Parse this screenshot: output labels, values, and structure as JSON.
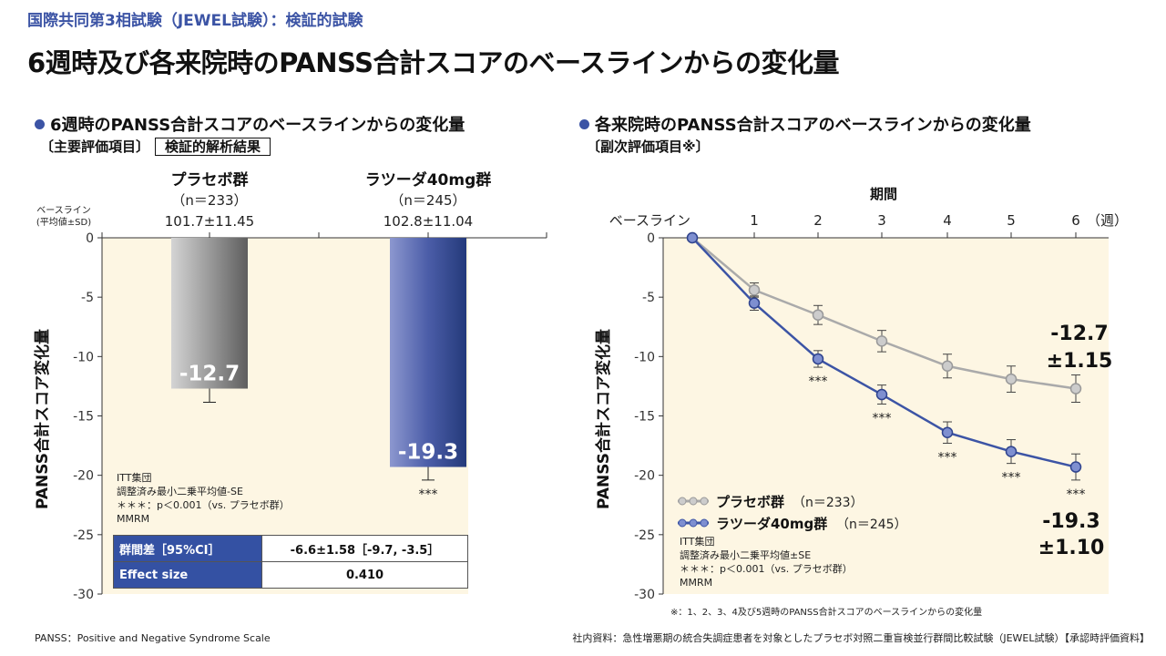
{
  "header": {
    "subtitle": "国際共同第3相試験（JEWEL試験）：検証的試験",
    "title": "6週時及び各来院時のPANSS合計スコアのベースラインからの変化量"
  },
  "left_section": {
    "title": "6週時のPANSS合計スコアのベースラインからの変化量",
    "subtitle": "〔主要評価項目〕",
    "badge": "検証的解析結果",
    "baseline_label_line1": "ベースライン",
    "baseline_label_line2": "(平均値±SD)",
    "groups": [
      {
        "name": "プラセボ群",
        "n": "（n＝233）",
        "baseline": "101.7±11.45"
      },
      {
        "name": "ラツーダ40mg群",
        "n": "（n＝245）",
        "baseline": "102.8±11.04"
      }
    ],
    "notes": [
      "ITT集団",
      "調整済み最小二乗平均値-SE",
      "＊＊＊：p＜0.001（vs. プラセボ群）",
      "MMRM"
    ],
    "table": [
      {
        "label": "群間差［95%CI］",
        "value": "-6.6±1.58［-9.7, -3.5］"
      },
      {
        "label": "Effect size",
        "value": "0.410"
      }
    ]
  },
  "right_section": {
    "title": "各来院時のPANSS合計スコアのベースラインからの変化量",
    "subtitle": "〔副次評価項目※〕",
    "notes": [
      "ITT集団",
      "調整済み最小二乗平均値±SE",
      "＊＊＊：p＜0.001（vs. プラセボ群）",
      "MMRM"
    ],
    "footnote": "※：1、2、3、4及び5週時のPANSS合計スコアのベースラインからの変化量",
    "placebo_end_label": [
      "-12.7",
      "±1.15"
    ],
    "latuda_end_label": [
      "-19.3",
      "±1.10"
    ]
  },
  "footer": {
    "left": "PANSS：Positive and Negative Syndrome Scale",
    "right": "社内資料：急性増悪期の統合失調症患者を対象としたプラセボ対照二重盲検並行群間比較試験（JEWEL試験）【承認時評価資料】"
  },
  "colors": {
    "accent": "#3c54a5",
    "plot_bg": "#fdf6e3",
    "placebo": "#aaaaaa",
    "latuda": "#3c54a5"
  },
  "chart_data": [
    {
      "type": "bar",
      "title": "6週時のPANSS合計スコアのベースラインからの変化量",
      "ylabel": "PANSS合計スコア変化量",
      "ylim": [
        -30,
        0
      ],
      "yticks": [
        0,
        -5,
        -10,
        -15,
        -20,
        -25,
        -30
      ],
      "categories": [
        "プラセボ群",
        "ラツーダ40mg群"
      ],
      "values": [
        -12.7,
        -19.3
      ],
      "value_labels": [
        "-12.7",
        "-19.3"
      ],
      "errors": [
        1.15,
        1.1
      ],
      "significance": [
        "",
        "***"
      ]
    },
    {
      "type": "line",
      "title": "各来院時のPANSS合計スコアのベースラインからの変化量",
      "xlabel": "期間",
      "ylabel": "PANSS合計スコア変化量",
      "x_tick_labels": [
        "ベースライン",
        "1",
        "2",
        "3",
        "4",
        "5",
        "6"
      ],
      "x_unit": "（週）",
      "x": [
        0,
        1,
        2,
        3,
        4,
        5,
        6
      ],
      "ylim": [
        -30,
        0
      ],
      "yticks": [
        0,
        -5,
        -10,
        -15,
        -20,
        -25,
        -30
      ],
      "series": [
        {
          "name": "プラセボ群",
          "n": "（n＝233）",
          "values": [
            0,
            -4.4,
            -6.5,
            -8.7,
            -10.8,
            -11.9,
            -12.7
          ],
          "errors": [
            0,
            0.6,
            0.8,
            0.9,
            1.0,
            1.1,
            1.15
          ]
        },
        {
          "name": "ラツーダ40mg群",
          "n": "（n＝245）",
          "values": [
            0,
            -5.5,
            -10.2,
            -13.2,
            -16.4,
            -18.0,
            -19.3
          ],
          "errors": [
            0,
            0.6,
            0.7,
            0.8,
            0.9,
            1.0,
            1.1
          ]
        }
      ],
      "significance_label": "***",
      "significance_points": [
        2,
        3,
        4,
        5,
        6
      ]
    }
  ]
}
